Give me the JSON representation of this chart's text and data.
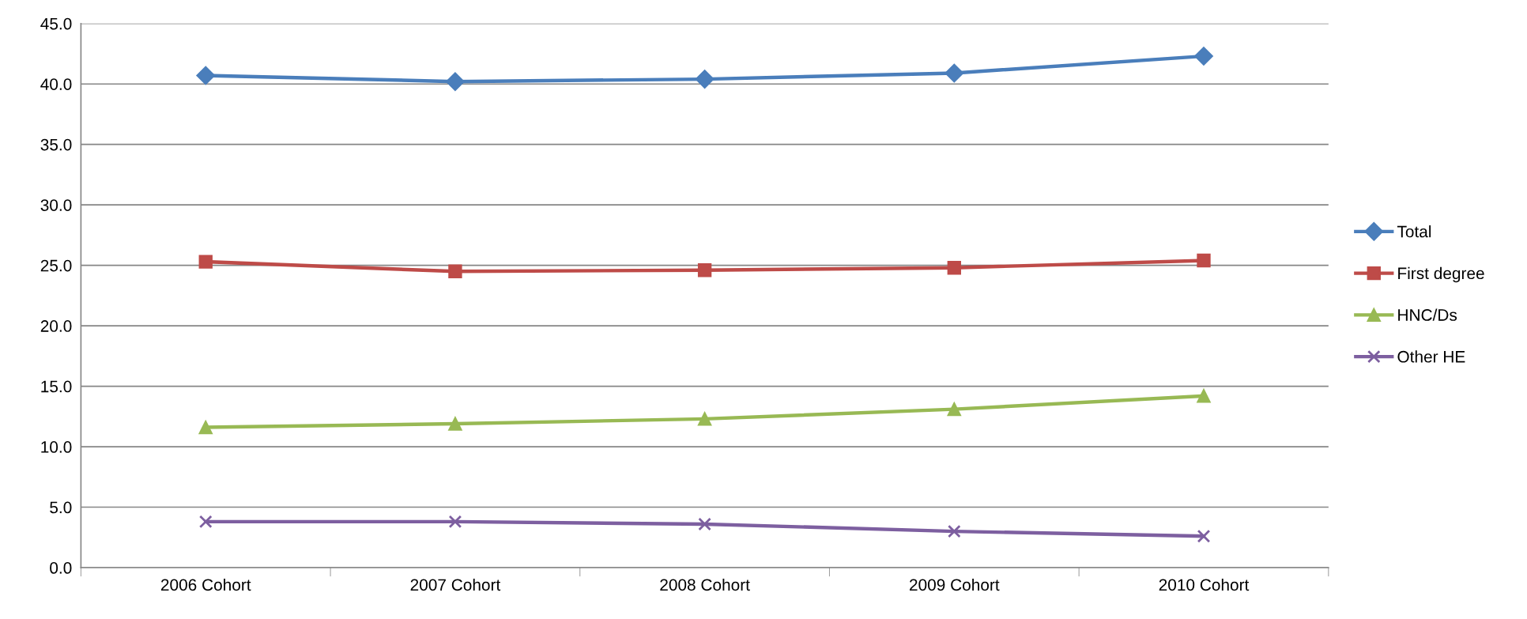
{
  "chart_data": {
    "type": "line",
    "categories": [
      "2006 Cohort",
      "2007 Cohort",
      "2008 Cohort",
      "2009 Cohort",
      "2010 Cohort"
    ],
    "series": [
      {
        "name": "Total",
        "color": "#4a7ebb",
        "marker": "diamond",
        "values": [
          40.7,
          40.2,
          40.4,
          40.9,
          42.3
        ]
      },
      {
        "name": "First degree",
        "color": "#be4b48",
        "marker": "square",
        "values": [
          25.3,
          24.5,
          24.6,
          24.8,
          25.4
        ]
      },
      {
        "name": "HNC/Ds",
        "color": "#98b954",
        "marker": "triangle",
        "values": [
          11.6,
          11.9,
          12.3,
          13.1,
          14.2
        ]
      },
      {
        "name": "Other HE",
        "color": "#7d5fa0",
        "marker": "cross",
        "values": [
          3.8,
          3.8,
          3.6,
          3.0,
          2.6
        ]
      }
    ],
    "ylim": [
      0,
      45
    ],
    "yticks": [
      {
        "value": 0,
        "label": "0.0"
      },
      {
        "value": 5,
        "label": "5.0"
      },
      {
        "value": 10,
        "label": "10.0"
      },
      {
        "value": 15,
        "label": "15.0"
      },
      {
        "value": 20,
        "label": "20.0"
      },
      {
        "value": 25,
        "label": "25.0"
      },
      {
        "value": 30,
        "label": "30.0"
      },
      {
        "value": 35,
        "label": "35.0"
      },
      {
        "value": 40,
        "label": "40.0"
      },
      {
        "value": 45,
        "label": "45.0"
      }
    ],
    "grid": "y",
    "legend": "right",
    "line_style": "solid"
  }
}
